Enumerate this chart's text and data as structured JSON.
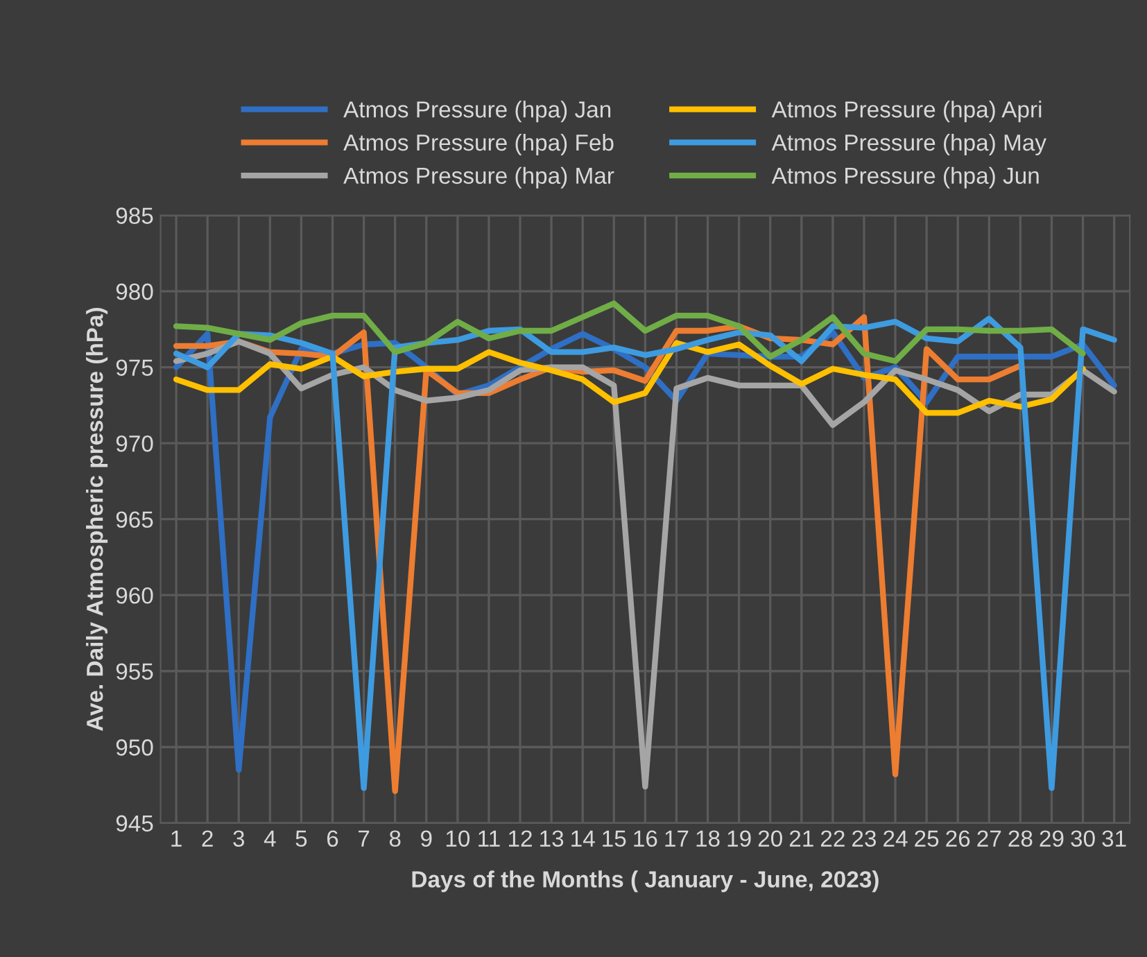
{
  "chart_data": {
    "type": "line",
    "xlabel": "Days of the Months ( January - June, 2023)",
    "ylabel": "Ave. Daily Atmospheric pressure (hPa)",
    "categories": [
      "1",
      "2",
      "3",
      "4",
      "5",
      "6",
      "7",
      "8",
      "9",
      "10",
      "11",
      "12",
      "13",
      "14",
      "15",
      "16",
      "17",
      "18",
      "19",
      "20",
      "21",
      "22",
      "23",
      "24",
      "25",
      "26",
      "27",
      "28",
      "29",
      "30",
      "31"
    ],
    "ylim": [
      945,
      985
    ],
    "yticks": [
      945,
      950,
      955,
      960,
      965,
      970,
      975,
      980,
      985
    ],
    "grid": true,
    "legend": "top",
    "marker": "none",
    "line_style": "solid",
    "series": [
      {
        "name": "Atmos Pressure (hpa) Jan",
        "color": "#2f6fc4",
        "values": [
          975.0,
          977.2,
          948.5,
          971.7,
          976.2,
          975.9,
          976.5,
          976.6,
          975.0,
          973.2,
          973.8,
          975.0,
          976.2,
          977.2,
          976.2,
          975.0,
          972.8,
          975.9,
          975.8,
          975.7,
          975.7,
          977.3,
          974.3,
          975.0,
          972.7,
          975.7,
          975.7,
          975.7,
          975.7,
          976.5,
          973.8
        ]
      },
      {
        "name": "Atmos Pressure (hpa) Feb",
        "color": "#ed7d31",
        "values": [
          976.4,
          976.4,
          976.7,
          976.0,
          975.9,
          975.7,
          977.3,
          947.1,
          974.8,
          973.3,
          973.3,
          974.2,
          975.0,
          974.7,
          974.8,
          974.1,
          977.4,
          977.4,
          977.7,
          976.9,
          976.8,
          976.5,
          978.3,
          948.2,
          976.2,
          974.2,
          974.2,
          975.1,
          null,
          null,
          null
        ]
      },
      {
        "name": "Atmos Pressure (hpa) Mar",
        "color": "#a5a5a5",
        "values": [
          975.4,
          975.9,
          976.7,
          975.9,
          973.6,
          974.5,
          975.0,
          973.5,
          972.8,
          973.0,
          973.5,
          974.8,
          975.0,
          975.0,
          973.8,
          947.4,
          973.6,
          974.3,
          973.8,
          973.8,
          973.8,
          971.2,
          972.7,
          974.8,
          974.2,
          973.5,
          972.1,
          973.2,
          973.2,
          974.8,
          973.4
        ]
      },
      {
        "name": "Atmos Pressure (hpa) Apri",
        "color": "#ffc000",
        "values": [
          974.2,
          973.5,
          973.5,
          975.2,
          974.9,
          975.7,
          974.4,
          974.7,
          974.9,
          974.9,
          976.0,
          975.3,
          974.8,
          974.2,
          972.7,
          973.3,
          976.6,
          976.0,
          976.5,
          975.1,
          973.9,
          974.9,
          974.5,
          974.2,
          972.0,
          972.0,
          972.8,
          972.4,
          972.9,
          974.9,
          null
        ]
      },
      {
        "name": "Atmos Pressure (hpa) May",
        "color": "#3e9be0",
        "values": [
          975.9,
          975.0,
          977.2,
          977.1,
          976.6,
          975.9,
          947.3,
          976.3,
          976.6,
          976.8,
          977.4,
          977.5,
          976.0,
          976.0,
          976.3,
          975.8,
          976.2,
          976.8,
          977.3,
          977.1,
          975.4,
          977.7,
          977.6,
          978.0,
          976.9,
          976.7,
          978.2,
          976.3,
          947.3,
          977.5,
          976.8
        ]
      },
      {
        "name": "Atmos Pressure (hpa) Jun",
        "color": "#70ad47",
        "values": [
          977.7,
          977.6,
          977.2,
          976.8,
          977.9,
          978.4,
          978.4,
          976.0,
          976.6,
          978.0,
          976.9,
          977.4,
          977.4,
          978.3,
          979.2,
          977.4,
          978.4,
          978.4,
          977.7,
          975.7,
          976.8,
          978.3,
          975.9,
          975.4,
          977.5,
          977.5,
          977.4,
          977.4,
          977.5,
          975.9,
          null
        ]
      }
    ]
  }
}
